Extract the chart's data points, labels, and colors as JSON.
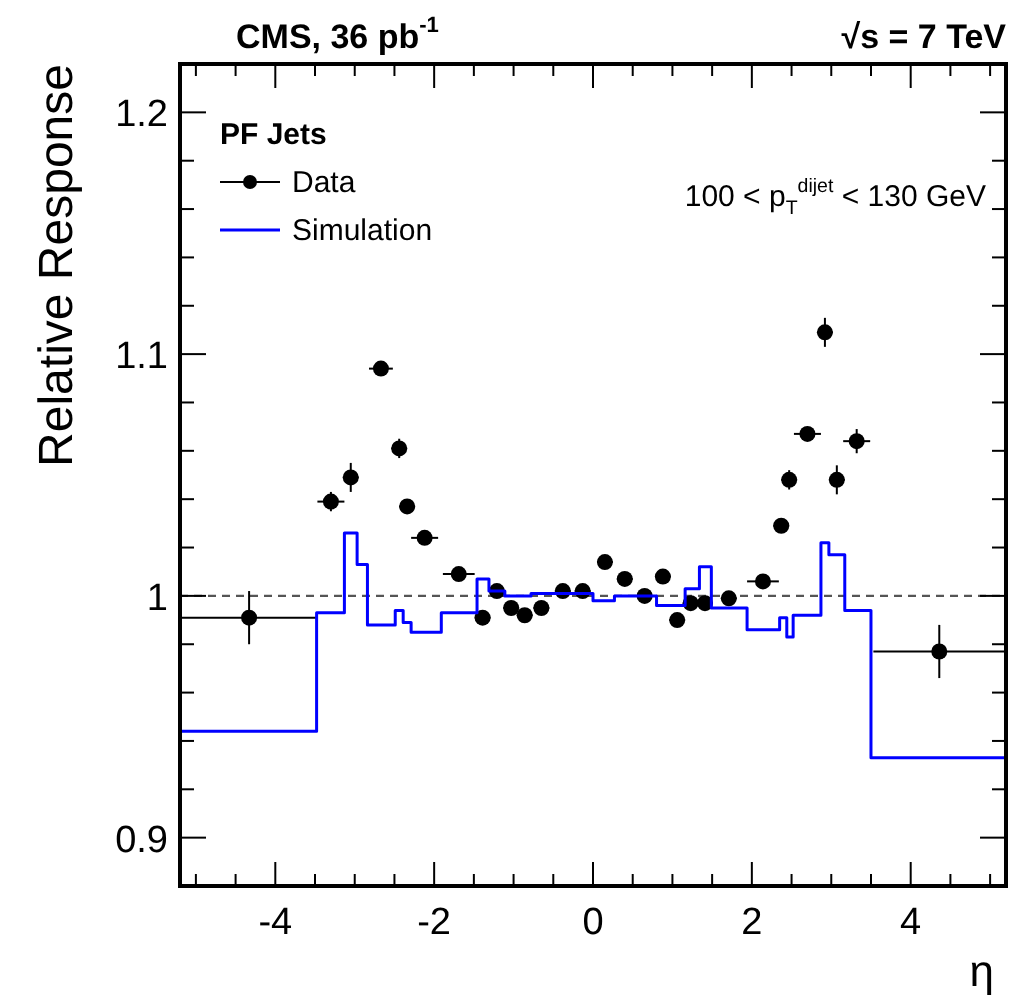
{
  "chart_data": {
    "type": "scatter",
    "title": "CMS, 36 pb$^{-1}$",
    "subtitle": "√s = 7 TeV",
    "xlabel": "η",
    "ylabel": "Relative Response",
    "legend_title": "PF Jets",
    "annotations": [
      "100 < p$_{T}$$^{dijet}$ < 130 GeV"
    ],
    "xlim": [
      -5.2,
      5.2
    ],
    "ylim": [
      0.88,
      1.22
    ],
    "xticks": [
      {
        "value": -5,
        "label": null
      },
      {
        "value": -4.5,
        "label": null
      },
      -4,
      {
        "value": -3.5,
        "label": null
      },
      {
        "value": -3,
        "label": null
      },
      {
        "value": -2.5,
        "label": null
      },
      -2,
      {
        "value": -1.5,
        "label": null
      },
      {
        "value": -1,
        "label": null
      },
      {
        "value": -0.5,
        "label": null
      },
      0,
      {
        "value": 0.5,
        "label": null
      },
      {
        "value": 1,
        "label": null
      },
      {
        "value": 1.5,
        "label": null
      },
      2,
      {
        "value": 2.5,
        "label": null
      },
      {
        "value": 3,
        "label": null
      },
      {
        "value": 3.5,
        "label": null
      },
      4,
      {
        "value": 4.5,
        "label": null
      },
      {
        "value": 5,
        "label": null
      }
    ],
    "yticks": [
      {
        "value": 0.9,
        "label": "0.9"
      },
      {
        "value": 0.92,
        "label": null
      },
      {
        "value": 0.94,
        "label": null
      },
      {
        "value": 0.96,
        "label": null
      },
      {
        "value": 0.98,
        "label": null
      },
      1,
      {
        "value": 1.02,
        "label": null
      },
      {
        "value": 1.04,
        "label": null
      },
      {
        "value": 1.06,
        "label": null
      },
      {
        "value": 1.08,
        "label": null
      },
      1.1,
      {
        "value": 1.12,
        "label": null
      },
      {
        "value": 1.14,
        "label": null
      },
      {
        "value": 1.16,
        "label": null
      },
      {
        "value": 1.18,
        "label": null
      },
      {
        "value": 1.2,
        "label": "1.2"
      }
    ],
    "grid": false,
    "legend": "top left",
    "ref_lines": [
      {
        "axis": "y",
        "value": 1,
        "color": "#555555",
        "line_style": "dashed"
      }
    ],
    "series": [
      {
        "name": "Data",
        "color": "#000000",
        "marker": "circle",
        "x": [
          -4.33,
          -3.3,
          -3.05,
          -2.67,
          -2.44,
          -2.34,
          -2.12,
          -1.69,
          -1.39,
          -1.21,
          -1.03,
          -0.86,
          -0.65,
          -0.38,
          -0.13,
          0.15,
          0.4,
          0.65,
          0.88,
          1.06,
          1.23,
          1.41,
          1.71,
          2.14,
          2.37,
          2.47,
          2.7,
          2.92,
          3.07,
          3.32,
          4.36
        ],
        "values": [
          0.991,
          1.039,
          1.049,
          1.094,
          1.061,
          1.037,
          1.024,
          1.009,
          0.991,
          1.002,
          0.995,
          0.992,
          0.995,
          1.002,
          1.002,
          1.014,
          1.007,
          1.0,
          1.008,
          0.99,
          0.997,
          0.997,
          0.999,
          1.006,
          1.029,
          1.048,
          1.067,
          1.109,
          1.048,
          1.064,
          0.977
        ],
        "errors": [
          0.011,
          0.004,
          0.006,
          0.002,
          0.004,
          0.003,
          0.002,
          0.002,
          0.002,
          0.002,
          0.002,
          0.002,
          0.002,
          0.002,
          0.002,
          0.002,
          0.002,
          0.002,
          0.002,
          0.002,
          0.002,
          0.002,
          0.002,
          0.002,
          0.003,
          0.004,
          0.002,
          0.006,
          0.006,
          0.005,
          0.011
        ],
        "xerrors": [
          [
            -5.2,
            -3.48
          ],
          0.17,
          0.1,
          0.15,
          0.1,
          0.1,
          0.17,
          0.2,
          0.1,
          0.1,
          0.1,
          0.1,
          0.1,
          0.1,
          0.1,
          0.1,
          0.1,
          0.1,
          0.1,
          0.1,
          0.1,
          0.1,
          0.1,
          0.2,
          0.1,
          0.1,
          0.17,
          0.1,
          0.1,
          0.17,
          [
            3.53,
            5.2
          ]
        ]
      },
      {
        "name": "Simulation",
        "type": "step",
        "color": "#0000ff",
        "line_style": "solid",
        "x": [
          -5.2,
          -3.48,
          -3.13,
          -2.97,
          -2.84,
          -2.49,
          -2.39,
          -2.29,
          -1.91,
          -1.46,
          -1.31,
          -1.11,
          -0.78,
          0,
          0.27,
          0.8,
          1.16,
          1.34,
          1.49,
          1.94,
          2.35,
          2.44,
          2.52,
          2.87,
          2.97,
          3.17,
          3.5,
          5.2
        ],
        "values": [
          0.944,
          0.993,
          1.026,
          1.013,
          0.988,
          0.994,
          0.989,
          0.985,
          0.993,
          1.007,
          1.002,
          1.0,
          1.001,
          0.998,
          1.0,
          0.996,
          1.003,
          1.012,
          0.995,
          0.986,
          0.991,
          0.983,
          0.992,
          1.022,
          1.017,
          0.994,
          0.933,
          0.933
        ]
      }
    ]
  }
}
